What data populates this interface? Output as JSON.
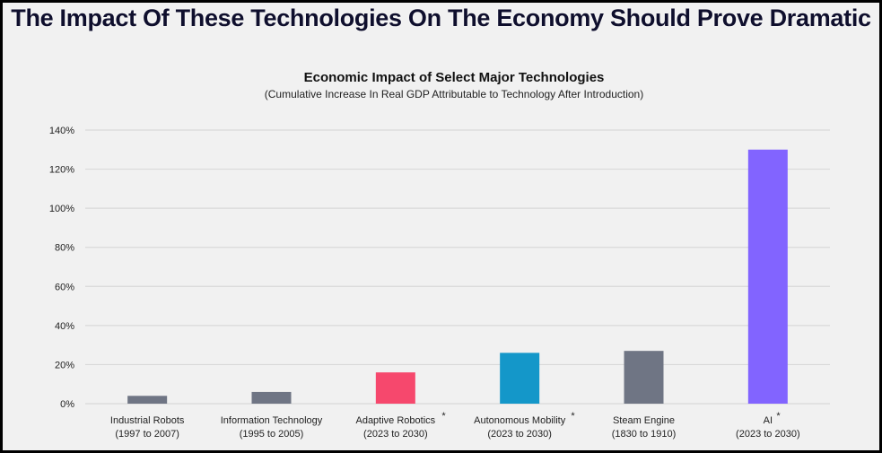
{
  "header": {
    "title": "The Impact Of These Technologies On The Economy Should Prove Dramatic"
  },
  "chart_data": {
    "type": "bar",
    "title": "Economic Impact of Select Major Technologies",
    "subtitle": "(Cumulative Increase In Real GDP Attributable to Technology After Introduction)",
    "xlabel": "",
    "ylabel": "",
    "ylim": [
      0,
      140
    ],
    "yticks": [
      0,
      20,
      40,
      60,
      80,
      100,
      120,
      140
    ],
    "ytick_labels": [
      "0%",
      "20%",
      "40%",
      "60%",
      "80%",
      "100%",
      "120%",
      "140%"
    ],
    "grid": true,
    "categories": [
      {
        "name": "Industrial Robots",
        "period": "(1997 to 2007)",
        "asterisk": false
      },
      {
        "name": "Information Technology",
        "period": "(1995 to 2005)",
        "asterisk": false
      },
      {
        "name": "Adaptive Robotics",
        "period": "(2023 to 2030)",
        "asterisk": true
      },
      {
        "name": "Autonomous Mobility",
        "period": "(2023 to 2030)",
        "asterisk": true
      },
      {
        "name": "Steam Engine",
        "period": "(1830 to 1910)",
        "asterisk": false
      },
      {
        "name": "AI",
        "period": "(2023 to 2030)",
        "asterisk": true
      }
    ],
    "values": [
      4,
      6,
      16,
      26,
      27,
      130
    ],
    "unit": "%",
    "colors": [
      "#6f7584",
      "#6f7584",
      "#f6486d",
      "#1497c9",
      "#6f7584",
      "#8264ff"
    ],
    "grid_color": "#d9d9d9"
  }
}
